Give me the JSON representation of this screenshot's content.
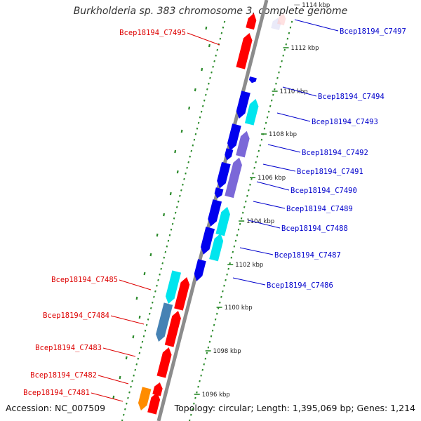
{
  "title": "Burkholderia sp. 383 chromosome 3, complete genome",
  "accession": "Accession: NC_007509",
  "summary": "Topology: circular; Length: 1,395,069 bp; Genes: 1,214",
  "colors": {
    "backbone": "#8c8c8c",
    "gc_dots": "#2a8a2a",
    "left_label": "#dd0000",
    "right_label": "#0000cc",
    "red": "#ff0000",
    "cyan": "#00e5ee",
    "blue": "#0000ee",
    "purple": "#7b68d8",
    "steel": "#4682b4",
    "orange": "#ff8c00",
    "lavender": "#d8d8f4",
    "pink": "#ffc8c8"
  },
  "ticks": [
    {
      "label": "1114 kbp",
      "faded": true
    },
    {
      "label": "1112 kbp"
    },
    {
      "label": "1110 kbp"
    },
    {
      "label": "1108 kbp"
    },
    {
      "label": "1106 kbp"
    },
    {
      "label": "1104 kbp"
    },
    {
      "label": "1102 kbp"
    },
    {
      "label": "1100 kbp"
    },
    {
      "label": "1098 kbp"
    },
    {
      "label": "1096 kbp"
    }
  ],
  "labels_left": [
    {
      "text": "Bcep18194_C7495"
    },
    {
      "text": "Bcep18194_C7485"
    },
    {
      "text": "Bcep18194_C7484"
    },
    {
      "text": "Bcep18194_C7483"
    },
    {
      "text": "Bcep18194_C7482"
    },
    {
      "text": "Bcep18194_C7481"
    }
  ],
  "labels_right": [
    {
      "text": "Bcep18194_C7497"
    },
    {
      "text": "Bcep18194_C7494"
    },
    {
      "text": "Bcep18194_C7493"
    },
    {
      "text": "Bcep18194_C7492"
    },
    {
      "text": "Bcep18194_C7491"
    },
    {
      "text": "Bcep18194_C7490"
    },
    {
      "text": "Bcep18194_C7489"
    },
    {
      "text": "Bcep18194_C7488"
    },
    {
      "text": "Bcep18194_C7487"
    },
    {
      "text": "Bcep18194_C7486"
    }
  ]
}
